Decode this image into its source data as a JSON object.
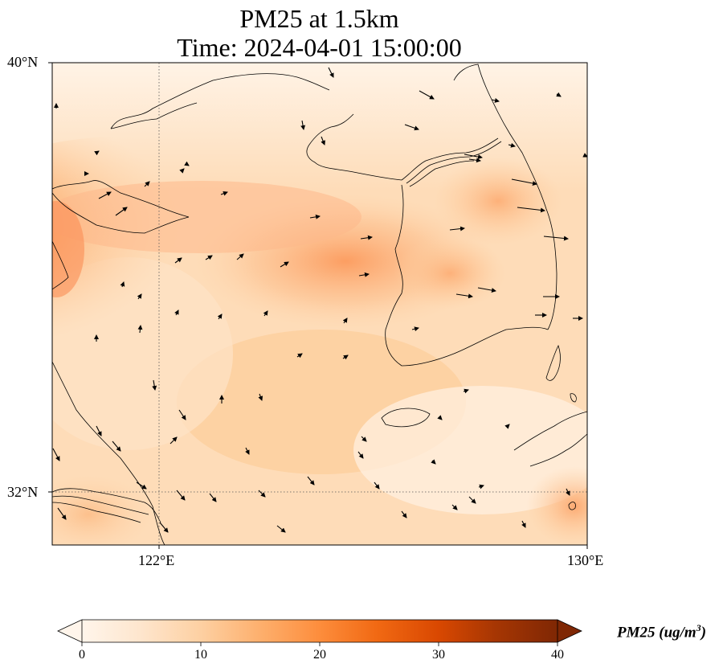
{
  "title": {
    "line1": "PM25 at 1.5km",
    "line2": "Time: 2024-04-01 15:00:00"
  },
  "axes": {
    "lat_ticks": [
      "40°N",
      "32°N"
    ],
    "lon_ticks": [
      "122°E",
      "130°E"
    ],
    "lat_range": [
      31,
      40
    ],
    "lon_range": [
      120,
      130
    ]
  },
  "colorbar": {
    "label_main": "PM25 (ug/m",
    "label_sup": "3",
    "label_end": ")",
    "ticks": [
      "0",
      "10",
      "20",
      "30",
      "40"
    ],
    "range": [
      0,
      40
    ],
    "colormap": [
      "#fff5eb",
      "#fee6ce",
      "#fdd0a2",
      "#fdae6b",
      "#fd8d3c",
      "#f16913",
      "#d94801",
      "#a63603",
      "#7f2704"
    ]
  },
  "map_style": {
    "gridlines": "dotted",
    "coastline_color": "#000000",
    "vector_color": "#000000"
  }
}
